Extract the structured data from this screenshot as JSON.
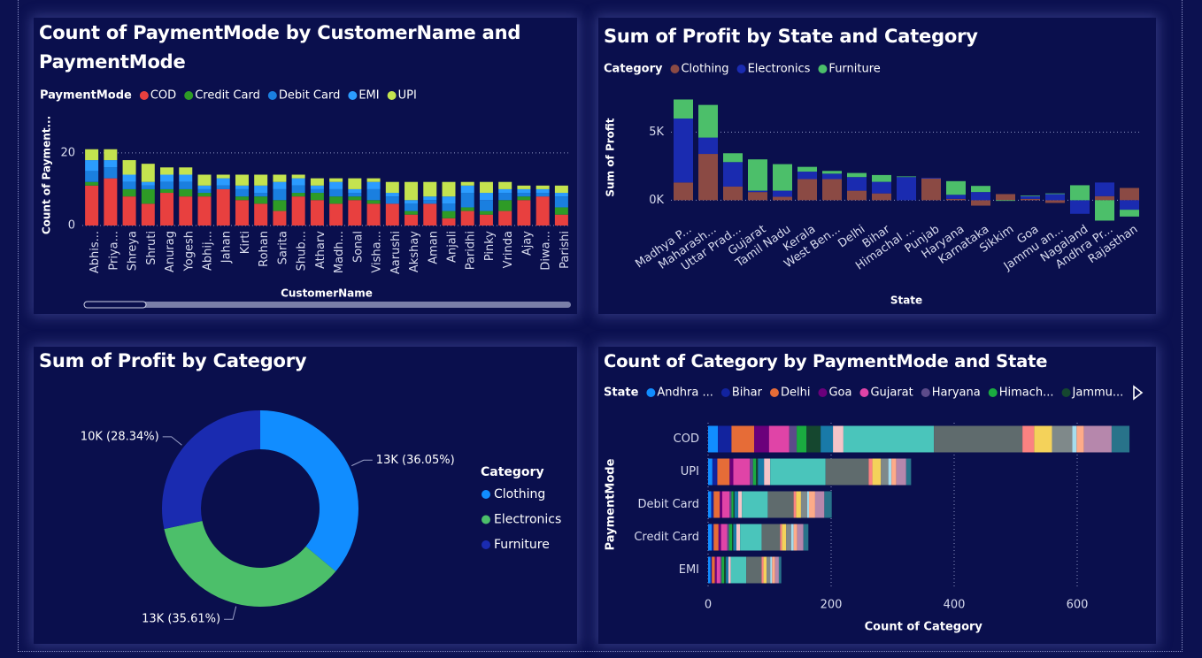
{
  "chart_data": [
    {
      "type": "bar",
      "stacked": true,
      "title": "Count of PaymentMode by CustomerName and PaymentMode",
      "legend_title": "PaymentMode",
      "x_label": "CustomerName",
      "y_label": "Count of Payment...",
      "categories": [
        "Abhis...",
        "Priya...",
        "Shreya",
        "Shruti",
        "Anurag",
        "Yogesh",
        "Abhij...",
        "Jahan",
        "Kirti",
        "Rohan",
        "Sarita",
        "Shub...",
        "Atharv",
        "Madh...",
        "Sonal",
        "Visha...",
        "Aarushi",
        "Akshay",
        "Aman",
        "Anjali",
        "Paridhi",
        "Pinky",
        "Vrinda",
        "Ajay",
        "Diwa...",
        "Parishi"
      ],
      "series": [
        {
          "name": "COD",
          "color": "#e8403f",
          "values": [
            11,
            13,
            8,
            6,
            9,
            8,
            8,
            10,
            7,
            6,
            4,
            8,
            7,
            6,
            7,
            6,
            6,
            3,
            6,
            2,
            4,
            3,
            4,
            7,
            8,
            3
          ]
        },
        {
          "name": "Credit Card",
          "color": "#2e9b26",
          "values": [
            1,
            0,
            2,
            4,
            1,
            2,
            1,
            0,
            1,
            2,
            3,
            1,
            2,
            2,
            1,
            1,
            0,
            1,
            0,
            2,
            1,
            1,
            3,
            1,
            0,
            2
          ]
        },
        {
          "name": "Debit Card",
          "color": "#1a7fe0",
          "values": [
            3,
            3,
            2,
            1,
            2,
            2,
            1,
            1,
            2,
            1,
            3,
            2,
            1,
            2,
            1,
            3,
            2,
            2,
            1,
            2,
            4,
            3,
            2,
            1,
            1,
            3
          ]
        },
        {
          "name": "EMI",
          "color": "#2b9cff",
          "values": [
            3,
            2,
            2,
            1,
            2,
            2,
            1,
            2,
            1,
            2,
            2,
            2,
            1,
            2,
            1,
            2,
            1,
            1,
            1,
            2,
            2,
            2,
            1,
            1,
            1,
            1
          ]
        },
        {
          "name": "UPI",
          "color": "#c4e34f",
          "values": [
            3,
            3,
            4,
            5,
            2,
            2,
            3,
            1,
            3,
            3,
            2,
            1,
            2,
            1,
            3,
            1,
            3,
            5,
            4,
            4,
            1,
            3,
            2,
            1,
            1,
            2
          ]
        }
      ],
      "ylim": [
        0,
        28
      ],
      "yticks": [
        0,
        20
      ],
      "grid": true
    },
    {
      "type": "bar",
      "stacked": true,
      "title": "Sum of Profit by State and Category",
      "legend_title": "Category",
      "x_label": "State",
      "y_label": "Sum of Profit",
      "categories": [
        "Madhya P...",
        "Maharash...",
        "Uttar Prad...",
        "Gujarat",
        "Tamil Nadu",
        "Kerala",
        "West Ben...",
        "Delhi",
        "Bihar",
        "Himachal ...",
        "Punjab",
        "Haryana",
        "Karnataka",
        "Sikkim",
        "Goa",
        "Jammu an...",
        "Nagaland",
        "Andhra Pr...",
        "Rajasthan"
      ],
      "series": [
        {
          "name": "Clothing",
          "color": "#8b4a44",
          "values": [
            1300,
            3400,
            1000,
            600,
            250,
            1550,
            1550,
            700,
            500,
            0,
            1600,
            100,
            -400,
            450,
            100,
            -200,
            0,
            300,
            900
          ]
        },
        {
          "name": "Electronics",
          "color": "#1a2bb0",
          "values": [
            4700,
            1200,
            1800,
            100,
            450,
            550,
            400,
            1000,
            850,
            1700,
            50,
            300,
            600,
            0,
            200,
            450,
            -1000,
            1000,
            -700
          ]
        },
        {
          "name": "Furniture",
          "color": "#4cbf6a",
          "values": [
            1400,
            2400,
            650,
            2300,
            1950,
            350,
            200,
            300,
            500,
            50,
            0,
            1000,
            450,
            -50,
            50,
            50,
            1100,
            -1500,
            -500
          ]
        }
      ],
      "ylim": [
        -1600,
        7600
      ],
      "yticks": [
        {
          "value": 0,
          "label": "0K"
        },
        {
          "value": 5000,
          "label": "5K"
        }
      ],
      "grid": true
    },
    {
      "type": "donut",
      "title": "Sum of Profit by Category",
      "legend_title": "Category",
      "categories": [
        "Clothing",
        "Electronics",
        "Furniture"
      ],
      "values": [
        12978,
        12820,
        10202
      ],
      "value_labels": [
        "13K (36.05%)",
        "13K (35.61%)",
        "10K (28.34%)"
      ],
      "colors": [
        "#118dff",
        "#4cbf6a",
        "#1a2bb0"
      ]
    },
    {
      "type": "hbar",
      "stacked": true,
      "title": "Count of Category by PaymentMode and State",
      "legend_title": "State",
      "x_label": "Count of Category",
      "y_label": "PaymentMode",
      "categories": [
        "COD",
        "UPI",
        "Debit Card",
        "Credit Card",
        "EMI"
      ],
      "series": [
        {
          "name": "Andhra ...",
          "color": "#118dff",
          "values": [
            16,
            7,
            5,
            6,
            4
          ]
        },
        {
          "name": "Bihar",
          "color": "#12239e",
          "values": [
            22,
            8,
            4,
            3,
            2
          ]
        },
        {
          "name": "Delhi",
          "color": "#e66c37",
          "values": [
            37,
            20,
            10,
            8,
            5
          ]
        },
        {
          "name": "Goa",
          "color": "#6b007b",
          "values": [
            24,
            6,
            4,
            4,
            3
          ]
        },
        {
          "name": "Gujarat",
          "color": "#e044a7",
          "values": [
            33,
            27,
            12,
            10,
            6
          ]
        },
        {
          "name": "Haryana",
          "color": "#5c4b8a",
          "values": [
            12,
            5,
            3,
            3,
            2
          ]
        },
        {
          "name": "Himach...",
          "color": "#1aab40",
          "values": [
            16,
            5,
            3,
            5,
            4
          ]
        },
        {
          "name": "Jammu...",
          "color": "#15472f",
          "values": [
            23,
            3,
            2,
            2,
            3
          ]
        },
        {
          "color": "#197aa8",
          "values": [
            20,
            10,
            6,
            5,
            4
          ]
        },
        {
          "color": "#f5c4c8",
          "values": [
            17,
            10,
            6,
            6,
            4
          ]
        },
        {
          "color": "#4ac5bb",
          "values": [
            147,
            90,
            42,
            35,
            25
          ]
        },
        {
          "color": "#5f6b6d",
          "values": [
            144,
            70,
            42,
            30,
            25
          ]
        },
        {
          "color": "#fb8281",
          "values": [
            19,
            6,
            4,
            3,
            3
          ]
        },
        {
          "color": "#f4d25a",
          "values": [
            29,
            14,
            8,
            7,
            5
          ]
        },
        {
          "color": "#7f898a",
          "values": [
            33,
            12,
            10,
            8,
            6
          ]
        },
        {
          "color": "#a4ddee",
          "values": [
            7,
            5,
            3,
            4,
            3
          ]
        },
        {
          "color": "#fdab89",
          "values": [
            12,
            8,
            10,
            6,
            5
          ]
        },
        {
          "color": "#b687ac",
          "values": [
            45,
            16,
            15,
            10,
            6
          ]
        },
        {
          "color": "#28738a",
          "values": [
            29,
            8,
            12,
            8,
            4
          ]
        }
      ],
      "xlim": [
        0,
        700
      ],
      "xticks": [
        0,
        200,
        400,
        600
      ],
      "grid": true
    }
  ]
}
